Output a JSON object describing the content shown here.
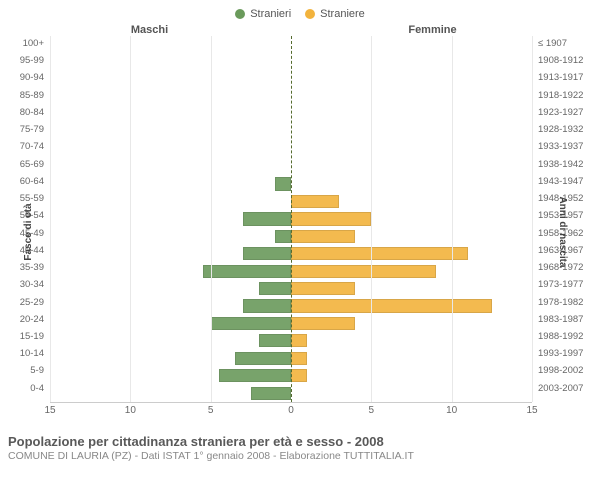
{
  "legend": {
    "male": {
      "label": "Stranieri",
      "color": "#6a9a5b"
    },
    "female": {
      "label": "Straniere",
      "color": "#f2b33d"
    }
  },
  "headers": {
    "left": "Maschi",
    "right": "Femmine"
  },
  "y_left_title": "Fasce di età",
  "y_right_title": "Anni di nascita",
  "x_ticks": [
    15,
    10,
    5,
    0,
    5,
    10,
    15
  ],
  "x_max": 15,
  "chart": {
    "type": "bar-pyramid",
    "background": "#ffffff",
    "grid_color": "#e8e8e8",
    "center_color": "#556b2f",
    "rows": [
      {
        "age": "100+",
        "birth": "≤ 1907",
        "m": 0,
        "f": 0
      },
      {
        "age": "95-99",
        "birth": "1908-1912",
        "m": 0,
        "f": 0
      },
      {
        "age": "90-94",
        "birth": "1913-1917",
        "m": 0,
        "f": 0
      },
      {
        "age": "85-89",
        "birth": "1918-1922",
        "m": 0,
        "f": 0
      },
      {
        "age": "80-84",
        "birth": "1923-1927",
        "m": 0,
        "f": 0
      },
      {
        "age": "75-79",
        "birth": "1928-1932",
        "m": 0,
        "f": 0
      },
      {
        "age": "70-74",
        "birth": "1933-1937",
        "m": 0,
        "f": 0
      },
      {
        "age": "65-69",
        "birth": "1938-1942",
        "m": 0,
        "f": 0
      },
      {
        "age": "60-64",
        "birth": "1943-1947",
        "m": 1,
        "f": 0
      },
      {
        "age": "55-59",
        "birth": "1948-1952",
        "m": 0,
        "f": 3
      },
      {
        "age": "50-54",
        "birth": "1953-1957",
        "m": 3,
        "f": 5
      },
      {
        "age": "45-49",
        "birth": "1958-1962",
        "m": 1,
        "f": 4
      },
      {
        "age": "40-44",
        "birth": "1963-1967",
        "m": 3,
        "f": 11
      },
      {
        "age": "35-39",
        "birth": "1968-1972",
        "m": 5.5,
        "f": 9
      },
      {
        "age": "30-34",
        "birth": "1973-1977",
        "m": 2,
        "f": 4
      },
      {
        "age": "25-29",
        "birth": "1978-1982",
        "m": 3,
        "f": 12.5
      },
      {
        "age": "20-24",
        "birth": "1983-1987",
        "m": 5,
        "f": 4
      },
      {
        "age": "15-19",
        "birth": "1988-1992",
        "m": 2,
        "f": 1
      },
      {
        "age": "10-14",
        "birth": "1993-1997",
        "m": 3.5,
        "f": 1
      },
      {
        "age": "5-9",
        "birth": "1998-2002",
        "m": 4.5,
        "f": 1
      },
      {
        "age": "0-4",
        "birth": "2003-2007",
        "m": 2.5,
        "f": 0
      }
    ]
  },
  "footer": {
    "title": "Popolazione per cittadinanza straniera per età e sesso - 2008",
    "sub": "COMUNE DI LAURIA (PZ) - Dati ISTAT 1° gennaio 2008 - Elaborazione TUTTITALIA.IT"
  }
}
